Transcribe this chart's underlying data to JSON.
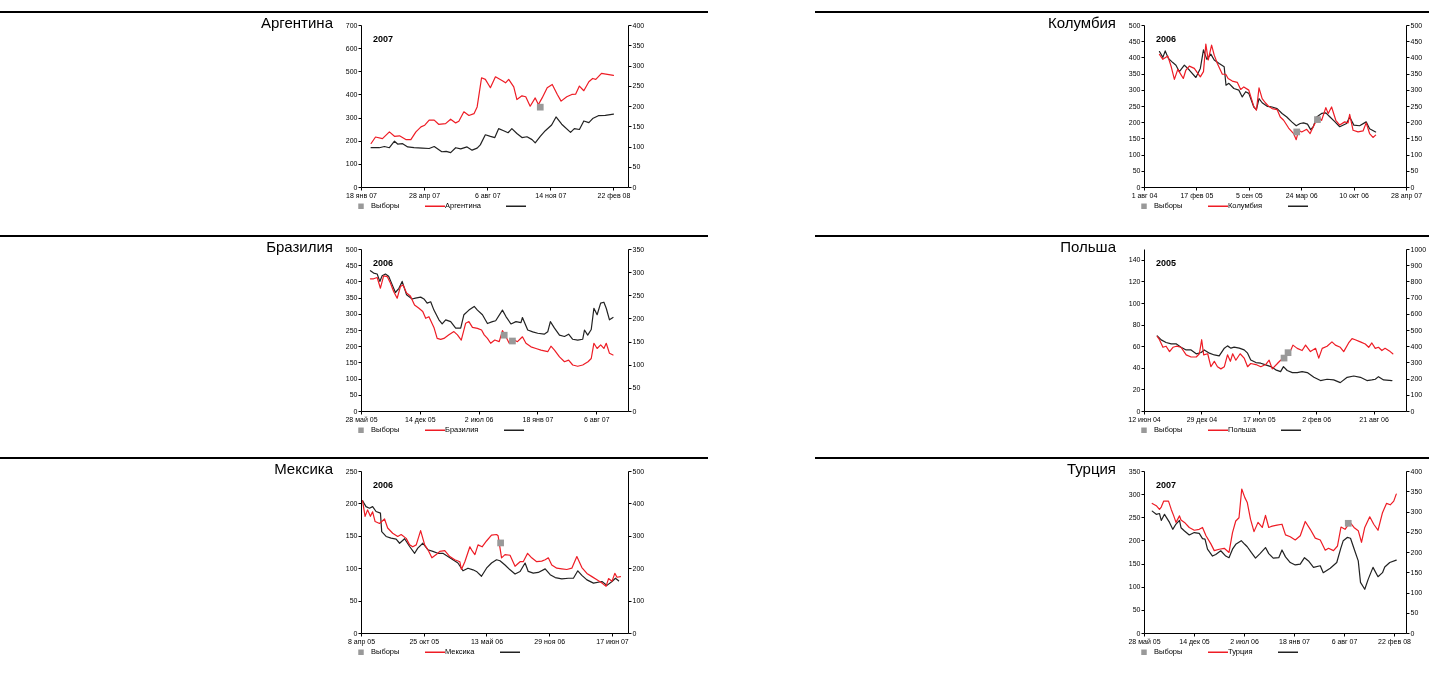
{
  "chart_data": [
    {
      "type": "line",
      "title": "Аргентина",
      "annotations": [
        "2007"
      ],
      "legend": "bottom",
      "xlim": [
        "2007-01-18",
        "2008-03-16"
      ],
      "xticks": [
        {
          "value": "2007-01-18",
          "label": "18 янв 07"
        },
        {
          "value": "2007-04-28",
          "label": "28 апр 07"
        },
        {
          "value": "2007-08-06",
          "label": "6 авг 07"
        },
        {
          "value": "2007-11-14",
          "label": "14 ноя 07"
        },
        {
          "value": "2008-02-22",
          "label": "22 фев 08"
        }
      ],
      "ylim": [
        0,
        700
      ],
      "yticks": [
        0,
        100,
        200,
        300,
        400,
        500,
        600,
        700
      ],
      "y2lim": [
        0,
        400
      ],
      "y2ticks": [
        0,
        50,
        100,
        150,
        200,
        250,
        300,
        350,
        400
      ],
      "series": [
        {
          "name": "Выборы",
          "type": "scatter",
          "marker": "square",
          "color": "#999999",
          "x": [
            "2007-10-29"
          ],
          "values": [
            345
          ]
        },
        {
          "name": "Аргентина",
          "color": "#ee1c25",
          "x": [
            "2007-02-03",
            "2007-02-10",
            "2007-02-21",
            "2007-03-04",
            "2007-03-12",
            "2007-03-20",
            "2007-03-30",
            "2007-04-07",
            "2007-04-15",
            "2007-04-23",
            "2007-04-29",
            "2007-05-06",
            "2007-05-14",
            "2007-05-21",
            "2007-06-01",
            "2007-06-09",
            "2007-06-17",
            "2007-06-22",
            "2007-06-30",
            "2007-07-08",
            "2007-07-16",
            "2007-07-21",
            "2007-07-28",
            "2007-08-03",
            "2007-08-11",
            "2007-08-19",
            "2007-08-30",
            "2007-09-04",
            "2007-09-09",
            "2007-09-17",
            "2007-09-22",
            "2007-09-30",
            "2007-10-06",
            "2007-10-13",
            "2007-10-21",
            "2007-10-26",
            "2007-11-01",
            "2007-11-09",
            "2007-11-17",
            "2007-11-25",
            "2007-12-01",
            "2007-12-10",
            "2007-12-18",
            "2007-12-24",
            "2007-12-30",
            "2008-01-06",
            "2008-01-14",
            "2008-01-20",
            "2008-01-25",
            "2008-02-03",
            "2008-02-10",
            "2008-02-22"
          ],
          "values": [
            188,
            216,
            209,
            238,
            219,
            221,
            205,
            205,
            238,
            260,
            267,
            289,
            289,
            271,
            274,
            293,
            277,
            284,
            325,
            309,
            317,
            346,
            472,
            465,
            429,
            476,
            459,
            450,
            465,
            433,
            378,
            394,
            390,
            349,
            385,
            356,
            385,
            429,
            443,
            400,
            371,
            390,
            400,
            401,
            436,
            416,
            455,
            469,
            465,
            491,
            488,
            482
          ]
        },
        {
          "color": "#222222",
          "axis": "y2",
          "x": [
            "2007-02-03",
            "2007-02-16",
            "2007-02-24",
            "2007-03-04",
            "2007-03-12",
            "2007-03-17",
            "2007-03-25",
            "2007-04-02",
            "2007-04-12",
            "2007-04-25",
            "2007-05-06",
            "2007-05-14",
            "2007-05-26",
            "2007-06-02",
            "2007-06-09",
            "2007-06-17",
            "2007-06-25",
            "2007-07-05",
            "2007-07-13",
            "2007-07-21",
            "2007-07-26",
            "2007-08-03",
            "2007-08-11",
            "2007-08-18",
            "2007-08-24",
            "2007-09-01",
            "2007-09-08",
            "2007-09-14",
            "2007-09-22",
            "2007-09-30",
            "2007-10-08",
            "2007-10-16",
            "2007-10-21",
            "2007-10-29",
            "2007-11-06",
            "2007-11-16",
            "2007-11-23",
            "2007-12-02",
            "2007-12-16",
            "2007-12-22",
            "2007-12-30",
            "2008-01-06",
            "2008-01-14",
            "2008-01-20",
            "2008-01-29",
            "2008-02-09",
            "2008-02-22"
          ],
          "values": [
            97,
            97,
            100,
            97,
            113,
            106,
            107,
            99,
            97,
            96,
            95,
            100,
            87,
            88,
            85,
            97,
            94,
            99,
            91,
            96,
            104,
            129,
            125,
            122,
            144,
            139,
            134,
            144,
            132,
            122,
            124,
            117,
            109,
            125,
            139,
            153,
            173,
            155,
            135,
            144,
            142,
            163,
            159,
            169,
            176,
            177,
            180
          ]
        }
      ]
    },
    {
      "type": "line",
      "title": "Колумбия",
      "annotations": [
        "2006"
      ],
      "legend": "bottom",
      "xlim": [
        "2004-08-01",
        "2007-04-28"
      ],
      "xticks": [
        {
          "value": "2004-08-01",
          "label": "1 авг 04"
        },
        {
          "value": "2005-02-17",
          "label": "17 фев 05"
        },
        {
          "value": "2005-09-05",
          "label": "5 сен 05"
        },
        {
          "value": "2006-03-24",
          "label": "24 мар 06"
        },
        {
          "value": "2006-10-10",
          "label": "10 окт 06"
        },
        {
          "value": "2007-04-28",
          "label": "28 апр 07"
        }
      ],
      "ylim": [
        0,
        500
      ],
      "yticks": [
        0,
        50,
        100,
        150,
        200,
        250,
        300,
        350,
        400,
        450,
        500
      ],
      "y2lim": [
        0,
        500
      ],
      "y2ticks": [
        0,
        50,
        100,
        150,
        200,
        250,
        300,
        350,
        400,
        450,
        500
      ],
      "series": [
        {
          "name": "Выборы",
          "type": "scatter",
          "marker": "square",
          "color": "#999999",
          "x": [
            "2006-03-07",
            "2006-05-25"
          ],
          "values": [
            170,
            208
          ]
        },
        {
          "name": "Колумбия",
          "color": "#ee1c25",
          "x": [
            "2004-09-29",
            "2004-10-12",
            "2004-10-31",
            "2004-11-13",
            "2004-11-25",
            "2004-12-08",
            "2004-12-20",
            "2004-12-29",
            "2005-01-08",
            "2005-01-21",
            "2005-02-09",
            "2005-03-04",
            "2005-03-16",
            "2005-03-25",
            "2005-04-03",
            "2005-04-16",
            "2005-04-26",
            "2005-05-08",
            "2005-05-27",
            "2005-06-09",
            "2005-06-18",
            "2005-07-04",
            "2005-07-23",
            "2005-08-05",
            "2005-08-17",
            "2005-09-05",
            "2005-09-24",
            "2005-10-04",
            "2005-10-14",
            "2005-10-26",
            "2005-11-07",
            "2005-11-20",
            "2005-12-03",
            "2005-12-22",
            "2006-01-03",
            "2006-01-16",
            "2006-02-04",
            "2006-02-23",
            "2006-03-05",
            "2006-03-14",
            "2006-03-26",
            "2006-04-14",
            "2006-04-27",
            "2006-05-09",
            "2006-05-28",
            "2006-06-10",
            "2006-06-26",
            "2006-07-05",
            "2006-07-18",
            "2006-08-03",
            "2006-08-18",
            "2006-09-06",
            "2006-09-19",
            "2006-09-25",
            "2006-10-08",
            "2006-10-27",
            "2006-11-15",
            "2006-11-27",
            "2006-12-10",
            "2006-12-23",
            "2007-01-02"
          ],
          "values": [
            409,
            394,
            404,
            371,
            332,
            363,
            347,
            335,
            361,
            373,
            366,
            340,
            356,
            441,
            392,
            438,
            407,
            381,
            348,
            348,
            335,
            327,
            323,
            301,
            309,
            299,
            249,
            237,
            306,
            273,
            260,
            249,
            242,
            239,
            216,
            206,
            182,
            165,
            146,
            175,
            170,
            178,
            165,
            186,
            216,
            206,
            245,
            227,
            247,
            206,
            191,
            201,
            198,
            224,
            175,
            170,
            173,
            198,
            165,
            153,
            160
          ]
        },
        {
          "color": "#222222",
          "axis": "y2",
          "x": [
            "2004-09-29",
            "2004-10-12",
            "2004-10-21",
            "2004-11-02",
            "2004-11-19",
            "2004-12-01",
            "2004-12-14",
            "2005-01-02",
            "2005-01-21",
            "2005-02-15",
            "2005-03-04",
            "2005-03-16",
            "2005-03-29",
            "2005-04-13",
            "2005-04-26",
            "2005-05-15",
            "2005-06-03",
            "2005-06-10",
            "2005-06-21",
            "2005-07-10",
            "2005-07-29",
            "2005-08-11",
            "2005-08-24",
            "2005-09-05",
            "2005-09-24",
            "2005-10-04",
            "2005-10-14",
            "2005-10-26",
            "2005-11-14",
            "2005-12-03",
            "2005-12-22",
            "2006-01-10",
            "2006-01-28",
            "2006-02-16",
            "2006-03-05",
            "2006-03-20",
            "2006-04-02",
            "2006-04-17",
            "2006-04-29",
            "2006-05-09",
            "2006-05-22",
            "2006-06-10",
            "2006-06-26",
            "2006-07-12",
            "2006-07-31",
            "2006-08-18",
            "2006-09-13",
            "2006-09-25",
            "2006-10-11",
            "2006-11-02",
            "2006-11-27",
            "2006-12-10",
            "2007-01-02"
          ],
          "values": [
            418,
            400,
            420,
            397,
            384,
            376,
            356,
            376,
            361,
            338,
            366,
            423,
            394,
            410,
            392,
            381,
            371,
            314,
            320,
            304,
            299,
            278,
            294,
            289,
            247,
            239,
            273,
            260,
            249,
            247,
            242,
            227,
            216,
            201,
            189,
            196,
            198,
            194,
            177,
            186,
            216,
            227,
            229,
            216,
            201,
            186,
            196,
            216,
            191,
            189,
            201,
            180,
            170
          ]
        }
      ]
    },
    {
      "type": "line",
      "title": "Бразилия",
      "annotations": [
        "2006"
      ],
      "legend": "bottom",
      "xlim": [
        "2005-05-28",
        "2007-11-22"
      ],
      "xticks": [
        {
          "value": "2005-05-28",
          "label": "28 май 05"
        },
        {
          "value": "2005-12-14",
          "label": "14 дек 05"
        },
        {
          "value": "2006-07-02",
          "label": "2 июл 06"
        },
        {
          "value": "2007-01-18",
          "label": "18 янв 07"
        },
        {
          "value": "2007-08-06",
          "label": "6 авг 07"
        }
      ],
      "ylim": [
        0,
        500
      ],
      "yticks": [
        0,
        50,
        100,
        150,
        200,
        250,
        300,
        350,
        400,
        450,
        500
      ],
      "y2lim": [
        0,
        350
      ],
      "y2ticks": [
        0,
        50,
        100,
        150,
        200,
        250,
        300,
        350
      ],
      "series": [
        {
          "name": "Выборы",
          "type": "scatter",
          "marker": "square",
          "color": "#999999",
          "x": [
            "2006-09-27",
            "2006-10-25"
          ],
          "values": [
            234,
            216
          ]
        },
        {
          "name": "Бразилия",
          "color": "#ee1c25",
          "x": [
            "2005-06-29",
            "2005-07-10",
            "2005-07-22",
            "2005-08-02",
            "2005-08-13",
            "2005-08-25",
            "2005-09-05",
            "2005-09-16",
            "2005-09-28",
            "2005-10-09",
            "2005-10-18",
            "2005-10-30",
            "2005-11-12",
            "2005-11-26",
            "2005-12-11",
            "2005-12-24",
            "2006-01-03",
            "2006-01-14",
            "2006-01-31",
            "2006-02-11",
            "2006-02-23",
            "2006-03-06",
            "2006-03-23",
            "2006-04-09",
            "2006-04-21",
            "2006-05-04",
            "2006-05-19",
            "2006-05-30",
            "2006-06-11",
            "2006-06-28",
            "2006-07-12",
            "2006-07-21",
            "2006-08-01",
            "2006-08-12",
            "2006-08-26",
            "2006-09-10",
            "2006-09-21",
            "2006-10-03",
            "2006-10-14",
            "2006-10-31",
            "2006-11-11",
            "2006-11-28",
            "2006-12-10",
            "2006-12-27",
            "2007-01-13",
            "2007-01-30",
            "2007-02-22",
            "2007-03-05",
            "2007-03-17",
            "2007-04-03",
            "2007-04-20",
            "2007-05-04",
            "2007-05-18",
            "2007-06-04",
            "2007-06-21",
            "2007-07-09",
            "2007-07-20",
            "2007-07-29",
            "2007-08-09",
            "2007-08-21",
            "2007-09-01",
            "2007-09-09",
            "2007-09-20",
            "2007-10-02"
          ],
          "values": [
            408,
            408,
            412,
            379,
            417,
            415,
            395,
            369,
            348,
            384,
            389,
            364,
            355,
            327,
            317,
            307,
            286,
            291,
            258,
            224,
            221,
            224,
            235,
            245,
            235,
            219,
            271,
            276,
            258,
            255,
            250,
            235,
            224,
            209,
            219,
            214,
            248,
            229,
            209,
            219,
            214,
            229,
            209,
            198,
            193,
            188,
            183,
            200,
            188,
            167,
            152,
            157,
            142,
            138,
            142,
            152,
            162,
            209,
            193,
            204,
            193,
            209,
            178,
            173
          ]
        },
        {
          "color": "#222222",
          "axis": "y2",
          "x": [
            "2005-06-29",
            "2005-07-10",
            "2005-07-22",
            "2005-07-31",
            "2005-08-08",
            "2005-08-19",
            "2005-08-30",
            "2005-09-11",
            "2005-09-22",
            "2005-10-04",
            "2005-10-15",
            "2005-10-30",
            "2005-11-18",
            "2005-11-29",
            "2005-12-17",
            "2005-12-28",
            "2006-01-08",
            "2006-01-20",
            "2006-01-31",
            "2006-02-17",
            "2006-02-28",
            "2006-03-12",
            "2006-03-29",
            "2006-04-15",
            "2006-05-02",
            "2006-05-13",
            "2006-05-30",
            "2006-06-17",
            "2006-06-28",
            "2006-07-15",
            "2006-08-01",
            "2006-08-18",
            "2006-08-29",
            "2006-09-21",
            "2006-10-03",
            "2006-10-20",
            "2006-11-06",
            "2006-11-23",
            "2006-11-28",
            "2006-12-16",
            "2007-01-02",
            "2007-01-19",
            "2007-02-10",
            "2007-02-22",
            "2007-03-03",
            "2007-03-17",
            "2007-04-03",
            "2007-04-20",
            "2007-05-04",
            "2007-05-18",
            "2007-06-04",
            "2007-06-21",
            "2007-06-27",
            "2007-07-08",
            "2007-07-20",
            "2007-07-29",
            "2007-08-09",
            "2007-08-21",
            "2007-09-01",
            "2007-09-09",
            "2007-09-20",
            "2007-10-02"
          ],
          "values": [
            303,
            298,
            296,
            280,
            292,
            296,
            291,
            273,
            256,
            265,
            280,
            251,
            242,
            244,
            246,
            242,
            233,
            236,
            218,
            197,
            188,
            197,
            193,
            179,
            179,
            208,
            218,
            226,
            218,
            208,
            189,
            193,
            195,
            218,
            204,
            188,
            193,
            191,
            202,
            175,
            171,
            168,
            166,
            171,
            193,
            179,
            164,
            161,
            166,
            155,
            153,
            155,
            175,
            164,
            176,
            222,
            208,
            233,
            235,
            222,
            197,
            202
          ]
        }
      ]
    },
    {
      "type": "line",
      "title": "Польша",
      "annotations": [
        "2005"
      ],
      "legend": "bottom",
      "xlim": [
        "2004-06-12",
        "2006-12-12"
      ],
      "xticks": [
        {
          "value": "2004-06-12",
          "label": "12 июн 04"
        },
        {
          "value": "2004-12-29",
          "label": "29 дек 04"
        },
        {
          "value": "2005-07-17",
          "label": "17 июл 05"
        },
        {
          "value": "2006-02-02",
          "label": "2 фев 06"
        },
        {
          "value": "2006-08-21",
          "label": "21 авг 06"
        }
      ],
      "ylim": [
        0,
        150
      ],
      "yticks": [
        0,
        20,
        40,
        60,
        80,
        100,
        120,
        140
      ],
      "y2lim": [
        0,
        1000
      ],
      "y2ticks": [
        0,
        100,
        200,
        300,
        400,
        500,
        600,
        700,
        800,
        900,
        1000
      ],
      "series": [
        {
          "name": "Выборы",
          "type": "scatter",
          "marker": "square",
          "color": "#999999",
          "x": [
            "2005-10-13",
            "2005-10-27"
          ],
          "values": [
            49,
            54
          ]
        },
        {
          "name": "Польша",
          "color": "#ee1c25",
          "x": [
            "2004-07-28",
            "2004-08-05",
            "2004-08-17",
            "2004-08-28",
            "2004-09-09",
            "2004-09-21",
            "2004-10-03",
            "2004-10-19",
            "2004-11-06",
            "2004-11-23",
            "2004-12-11",
            "2004-12-22",
            "2004-12-30",
            "2005-01-06",
            "2005-01-20",
            "2005-01-31",
            "2005-02-12",
            "2005-02-23",
            "2005-03-07",
            "2005-03-19",
            "2005-03-30",
            "2005-04-09",
            "2005-04-17",
            "2005-04-28",
            "2005-05-13",
            "2005-05-27",
            "2005-06-08",
            "2005-06-19",
            "2005-07-07",
            "2005-07-24",
            "2005-08-10",
            "2005-08-22",
            "2005-09-02",
            "2005-09-20",
            "2005-10-01",
            "2005-10-13",
            "2005-10-24",
            "2005-11-05",
            "2005-11-13",
            "2005-11-28",
            "2005-12-15",
            "2005-12-27",
            "2006-01-13",
            "2006-01-31",
            "2006-02-11",
            "2006-02-23",
            "2006-03-12",
            "2006-03-29",
            "2006-04-10",
            "2006-04-27",
            "2006-05-09",
            "2006-05-26",
            "2006-06-07",
            "2006-06-18",
            "2006-07-06",
            "2006-07-23",
            "2006-08-04",
            "2006-08-15",
            "2006-08-27",
            "2006-09-07",
            "2006-09-19",
            "2006-09-30",
            "2006-10-18",
            "2006-10-27"
          ],
          "values": [
            69,
            66,
            59,
            60,
            55,
            59,
            60,
            59,
            52,
            50,
            50,
            53,
            66,
            52,
            53,
            41,
            46,
            41,
            39,
            41,
            52,
            46,
            53,
            47,
            53,
            49,
            41,
            44,
            43,
            41,
            43,
            47,
            39,
            44,
            47,
            49,
            53,
            56,
            61,
            58,
            56,
            61,
            55,
            58,
            49,
            58,
            60,
            64,
            61,
            59,
            55,
            63,
            67,
            66,
            64,
            62,
            59,
            63,
            58,
            59,
            56,
            58,
            55,
            53
          ]
        },
        {
          "color": "#222222",
          "axis": "y2",
          "x": [
            "2004-07-28",
            "2004-08-11",
            "2004-08-28",
            "2004-09-15",
            "2004-10-03",
            "2004-10-19",
            "2004-11-06",
            "2004-11-23",
            "2004-12-11",
            "2004-12-28",
            "2005-01-08",
            "2005-01-26",
            "2005-02-12",
            "2005-03-01",
            "2005-03-19",
            "2005-03-30",
            "2005-04-11",
            "2005-04-22",
            "2005-05-10",
            "2005-05-27",
            "2005-06-08",
            "2005-06-19",
            "2005-07-07",
            "2005-07-24",
            "2005-08-10",
            "2005-08-28",
            "2005-09-14",
            "2005-10-01",
            "2005-10-11",
            "2005-10-24",
            "2005-11-11",
            "2005-11-28",
            "2005-12-15",
            "2006-01-02",
            "2006-01-25",
            "2006-02-17",
            "2006-03-12",
            "2006-04-04",
            "2006-04-27",
            "2006-05-21",
            "2006-06-13",
            "2006-07-06",
            "2006-07-29",
            "2006-08-15",
            "2006-08-27",
            "2006-09-07",
            "2006-09-25",
            "2006-10-24"
          ],
          "values": [
            464,
            439,
            423,
            414,
            414,
            394,
            377,
            377,
            353,
            361,
            377,
            357,
            346,
            340,
            388,
            402,
            388,
            394,
            388,
            377,
            357,
            315,
            299,
            295,
            285,
            274,
            254,
            243,
            274,
            250,
            237,
            237,
            243,
            237,
            208,
            188,
            196,
            192,
            175,
            208,
            216,
            208,
            188,
            192,
            196,
            212,
            192,
            188
          ]
        }
      ]
    },
    {
      "type": "line",
      "title": "Мексика",
      "annotations": [
        "2006"
      ],
      "legend": "bottom",
      "xlim": [
        "2005-04-08",
        "2007-08-07"
      ],
      "xticks": [
        {
          "value": "2005-04-08",
          "label": "8 апр 05"
        },
        {
          "value": "2005-10-25",
          "label": "25 окт 05"
        },
        {
          "value": "2006-05-13",
          "label": "13 май 06"
        },
        {
          "value": "2006-11-29",
          "label": "29 ноя 06"
        },
        {
          "value": "2007-06-17",
          "label": "17 июн 07"
        }
      ],
      "ylim": [
        0,
        250
      ],
      "yticks": [
        0,
        50,
        100,
        150,
        200,
        250
      ],
      "y2lim": [
        0,
        500
      ],
      "y2ticks": [
        0,
        100,
        200,
        300,
        400,
        500
      ],
      "series": [
        {
          "name": "Выборы",
          "type": "scatter",
          "marker": "square",
          "color": "#999999",
          "x": [
            "2006-06-27"
          ],
          "values": [
            139
          ]
        },
        {
          "name": "Мексика",
          "color": "#ee1c25",
          "x": [
            "2005-04-13",
            "2005-04-21",
            "2005-04-29",
            "2005-05-08",
            "2005-05-15",
            "2005-05-23",
            "2005-06-06",
            "2005-06-22",
            "2005-07-02",
            "2005-07-18",
            "2005-08-03",
            "2005-08-14",
            "2005-08-30",
            "2005-09-10",
            "2005-09-20",
            "2005-10-01",
            "2005-10-15",
            "2005-10-28",
            "2005-11-09",
            "2005-11-20",
            "2005-12-04",
            "2005-12-15",
            "2005-12-31",
            "2006-01-16",
            "2006-02-01",
            "2006-02-17",
            "2006-02-22",
            "2006-03-05",
            "2006-03-21",
            "2006-03-28",
            "2006-04-06",
            "2006-04-16",
            "2006-04-29",
            "2006-05-13",
            "2006-05-29",
            "2006-06-14",
            "2006-06-19",
            "2006-06-30",
            "2006-07-11",
            "2006-07-27",
            "2006-08-12",
            "2006-08-28",
            "2006-09-07",
            "2006-09-21",
            "2006-10-04",
            "2006-10-20",
            "2006-11-05",
            "2006-11-16",
            "2006-11-26",
            "2006-12-07",
            "2006-12-23",
            "2007-01-08",
            "2007-01-24",
            "2007-02-09",
            "2007-02-25",
            "2007-03-13",
            "2007-03-29",
            "2007-04-14",
            "2007-04-30",
            "2007-05-16",
            "2007-05-29",
            "2007-06-06",
            "2007-06-17",
            "2007-06-26",
            "2007-07-03",
            "2007-07-14"
          ],
          "values": [
            204,
            180,
            190,
            180,
            187,
            172,
            169,
            176,
            162,
            154,
            149,
            152,
            146,
            136,
            133,
            136,
            158,
            136,
            127,
            116,
            121,
            126,
            127,
            118,
            113,
            110,
            98,
            110,
            133,
            127,
            121,
            136,
            133,
            142,
            151,
            152,
            150,
            116,
            121,
            120,
            103,
            110,
            110,
            123,
            116,
            110,
            111,
            113,
            116,
            105,
            100,
            99,
            98,
            100,
            118,
            101,
            92,
            87,
            82,
            77,
            72,
            84,
            80,
            92,
            86,
            87
          ]
        },
        {
          "color": "#222222",
          "axis": "y2",
          "x": [
            "2005-04-13",
            "2005-04-24",
            "2005-05-05",
            "2005-05-15",
            "2005-05-26",
            "2005-06-09",
            "2005-06-13",
            "2005-06-27",
            "2005-07-13",
            "2005-07-29",
            "2005-08-09",
            "2005-08-25",
            "2005-09-10",
            "2005-09-26",
            "2005-10-06",
            "2005-10-22",
            "2005-11-07",
            "2005-11-23",
            "2005-12-09",
            "2005-12-25",
            "2006-01-10",
            "2006-01-26",
            "2006-02-11",
            "2006-02-27",
            "2006-03-15",
            "2006-03-31",
            "2006-04-11",
            "2006-04-27",
            "2006-05-13",
            "2006-05-29",
            "2006-06-14",
            "2006-06-25",
            "2006-07-11",
            "2006-07-27",
            "2006-08-12",
            "2006-08-28",
            "2006-09-13",
            "2006-09-23",
            "2006-10-09",
            "2006-10-25",
            "2006-11-16",
            "2006-12-02",
            "2006-12-18",
            "2007-01-08",
            "2007-01-29",
            "2007-02-14",
            "2007-02-28",
            "2007-03-13",
            "2007-03-29",
            "2007-04-19",
            "2007-05-16",
            "2007-06-01",
            "2007-06-17",
            "2007-06-28",
            "2007-07-08"
          ],
          "values": [
            408,
            390,
            385,
            390,
            375,
            370,
            313,
            298,
            293,
            290,
            277,
            291,
            267,
            246,
            262,
            277,
            257,
            252,
            246,
            246,
            236,
            226,
            216,
            192,
            200,
            195,
            190,
            175,
            200,
            216,
            226,
            223,
            210,
            195,
            182,
            190,
            216,
            190,
            185,
            187,
            198,
            180,
            171,
            167,
            169,
            169,
            192,
            178,
            164,
            154,
            159,
            147,
            159,
            169,
            161
          ]
        }
      ]
    },
    {
      "type": "line",
      "title": "Турция",
      "annotations": [
        "2007"
      ],
      "legend": "bottom",
      "xlim": [
        "2005-05-28",
        "2008-04-10"
      ],
      "xticks": [
        {
          "value": "2005-05-28",
          "label": "28 май 05"
        },
        {
          "value": "2005-12-14",
          "label": "14 дек 05"
        },
        {
          "value": "2006-07-02",
          "label": "2 июл 06"
        },
        {
          "value": "2007-01-18",
          "label": "18 янв 07"
        },
        {
          "value": "2007-08-06",
          "label": "6 авг 07"
        },
        {
          "value": "2008-02-22",
          "label": "22 фев 08"
        }
      ],
      "ylim": [
        0,
        350
      ],
      "yticks": [
        0,
        50,
        100,
        150,
        200,
        250,
        300,
        350
      ],
      "y2lim": [
        0,
        400
      ],
      "y2ticks": [
        0,
        50,
        100,
        150,
        200,
        250,
        300,
        350,
        400
      ],
      "series": [
        {
          "name": "Выборы",
          "type": "scatter",
          "marker": "square",
          "color": "#999999",
          "x": [
            "2007-08-23"
          ],
          "values": [
            237
          ]
        },
        {
          "name": "Турция",
          "color": "#ee1c25",
          "x": [
            "2005-06-30",
            "2005-07-16",
            "2005-07-29",
            "2005-08-05",
            "2005-08-15",
            "2005-09-03",
            "2005-09-14",
            "2005-09-24",
            "2005-10-03",
            "2005-10-17",
            "2005-10-23",
            "2005-11-06",
            "2005-11-25",
            "2005-12-15",
            "2006-01-04",
            "2006-01-17",
            "2006-01-31",
            "2006-02-20",
            "2006-03-05",
            "2006-03-25",
            "2006-04-14",
            "2006-05-03",
            "2006-05-17",
            "2006-05-30",
            "2006-06-12",
            "2006-06-23",
            "2006-07-05",
            "2006-07-15",
            "2006-07-28",
            "2006-08-11",
            "2006-08-27",
            "2006-09-13",
            "2006-09-26",
            "2006-10-09",
            "2006-10-23",
            "2006-11-11",
            "2006-12-01",
            "2006-12-15",
            "2007-01-03",
            "2007-01-23",
            "2007-02-12",
            "2007-03-04",
            "2007-03-24",
            "2007-04-13",
            "2007-05-03",
            "2007-05-23",
            "2007-06-05",
            "2007-06-25",
            "2007-07-11",
            "2007-07-25",
            "2007-08-10",
            "2007-08-30",
            "2007-09-15",
            "2007-10-02",
            "2007-10-15",
            "2007-10-28",
            "2007-11-17",
            "2007-12-03",
            "2007-12-20",
            "2008-01-07",
            "2008-01-23",
            "2008-02-07",
            "2008-02-21",
            "2008-03-02"
          ],
          "values": [
            280,
            275,
            267,
            272,
            285,
            285,
            267,
            253,
            239,
            253,
            244,
            239,
            228,
            222,
            224,
            228,
            210,
            192,
            178,
            181,
            183,
            174,
            217,
            242,
            249,
            311,
            293,
            282,
            246,
            219,
            239,
            228,
            254,
            228,
            231,
            233,
            235,
            212,
            208,
            201,
            210,
            241,
            224,
            205,
            201,
            179,
            183,
            178,
            188,
            229,
            224,
            239,
            228,
            221,
            196,
            228,
            251,
            235,
            222,
            260,
            280,
            277,
            285,
            300
          ]
        },
        {
          "color": "#222222",
          "axis": "y2",
          "x": [
            "2005-06-30",
            "2005-07-16",
            "2005-07-29",
            "2005-08-05",
            "2005-08-18",
            "2005-09-07",
            "2005-09-20",
            "2005-10-03",
            "2005-10-17",
            "2005-10-23",
            "2005-11-06",
            "2005-11-25",
            "2005-12-15",
            "2006-01-04",
            "2006-01-17",
            "2006-01-27",
            "2006-02-06",
            "2006-02-26",
            "2006-03-11",
            "2006-03-31",
            "2006-04-20",
            "2006-05-03",
            "2006-05-17",
            "2006-05-30",
            "2006-06-21",
            "2006-07-05",
            "2006-07-15",
            "2006-07-31",
            "2006-08-17",
            "2006-09-04",
            "2006-09-26",
            "2006-10-09",
            "2006-10-27",
            "2006-11-18",
            "2006-12-01",
            "2006-12-15",
            "2007-01-03",
            "2007-01-23",
            "2007-02-12",
            "2007-03-01",
            "2007-03-17",
            "2007-04-06",
            "2007-05-03",
            "2007-05-15",
            "2007-06-12",
            "2007-07-08",
            "2007-07-24",
            "2007-08-03",
            "2007-08-19",
            "2007-09-01",
            "2007-09-18",
            "2007-10-02",
            "2007-10-11",
            "2007-10-28",
            "2007-11-11",
            "2007-11-30",
            "2007-12-20",
            "2008-01-07",
            "2008-01-16",
            "2008-02-05",
            "2008-03-02"
          ],
          "values": [
            301,
            293,
            295,
            278,
            293,
            273,
            256,
            269,
            278,
            260,
            252,
            242,
            248,
            246,
            233,
            232,
            207,
            190,
            194,
            203,
            190,
            186,
            207,
            219,
            228,
            219,
            213,
            199,
            185,
            196,
            211,
            196,
            185,
            186,
            205,
            188,
            174,
            168,
            170,
            186,
            178,
            162,
            166,
            149,
            160,
            174,
            209,
            228,
            236,
            234,
            203,
            178,
            125,
            108,
            133,
            162,
            139,
            149,
            163,
            174,
            180
          ]
        }
      ]
    }
  ]
}
